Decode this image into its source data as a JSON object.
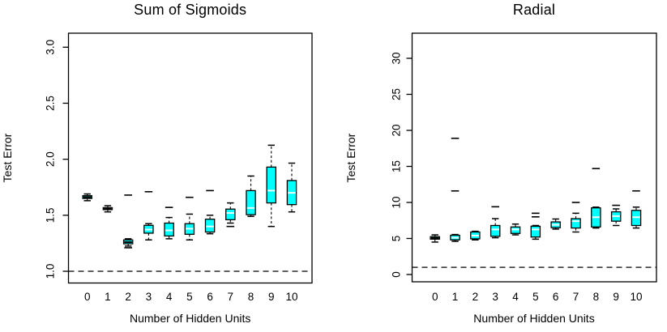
{
  "figure": {
    "background": "#ffffff",
    "line_color": "#000000",
    "accent_color": "#00ffff"
  },
  "chart_data": [
    {
      "type": "boxplot",
      "title": "Sum of Sigmoids",
      "xlabel": "Number of Hidden Units",
      "ylabel": "Test Error",
      "categories": [
        "0",
        "1",
        "2",
        "3",
        "4",
        "5",
        "6",
        "7",
        "8",
        "9",
        "10"
      ],
      "yticks": [
        1.0,
        1.5,
        2.0,
        2.5,
        3.0
      ],
      "ytick_labels": [
        "1.0",
        "1.5",
        "2.0",
        "2.5",
        "3.0"
      ],
      "ylim": [
        0.9,
        3.12
      ],
      "reference_line": 1.0,
      "grid": false,
      "legend": "none",
      "box_fill": "#00ffff",
      "median_color": "#eeffff",
      "boxes": [
        {
          "category": "0",
          "low": 1.63,
          "q1": 1.65,
          "median": 1.662,
          "q3": 1.675,
          "high": 1.69,
          "outliers": []
        },
        {
          "category": "1",
          "low": 1.53,
          "q1": 1.55,
          "median": 1.558,
          "q3": 1.568,
          "high": 1.585,
          "outliers": []
        },
        {
          "category": "2",
          "low": 1.225,
          "q1": 1.245,
          "median": 1.26,
          "q3": 1.28,
          "high": 1.29,
          "outliers": [
            1.68,
            1.21
          ]
        },
        {
          "category": "3",
          "low": 1.28,
          "q1": 1.34,
          "median": 1.372,
          "q3": 1.41,
          "high": 1.425,
          "outliers": [
            1.71
          ]
        },
        {
          "category": "4",
          "low": 1.29,
          "q1": 1.315,
          "median": 1.365,
          "q3": 1.43,
          "high": 1.48,
          "outliers": [
            1.57
          ]
        },
        {
          "category": "5",
          "low": 1.28,
          "q1": 1.33,
          "median": 1.38,
          "q3": 1.425,
          "high": 1.51,
          "outliers": [
            1.66
          ]
        },
        {
          "category": "6",
          "low": 1.335,
          "q1": 1.35,
          "median": 1.4,
          "q3": 1.465,
          "high": 1.5,
          "outliers": [
            1.72
          ]
        },
        {
          "category": "7",
          "low": 1.43,
          "q1": 1.46,
          "median": 1.52,
          "q3": 1.555,
          "high": 1.61,
          "outliers": [
            1.4
          ]
        },
        {
          "category": "8",
          "low": 1.49,
          "q1": 1.505,
          "median": 1.565,
          "q3": 1.72,
          "high": 1.85,
          "outliers": []
        },
        {
          "category": "9",
          "low": 1.4,
          "q1": 1.61,
          "median": 1.72,
          "q3": 1.93,
          "high": 2.125,
          "outliers": []
        },
        {
          "category": "10",
          "low": 1.53,
          "q1": 1.595,
          "median": 1.7,
          "q3": 1.81,
          "high": 1.965,
          "outliers": []
        }
      ]
    },
    {
      "type": "boxplot",
      "title": "Radial",
      "xlabel": "Number of Hidden Units",
      "ylabel": "Test Error",
      "categories": [
        "0",
        "1",
        "2",
        "3",
        "4",
        "5",
        "6",
        "7",
        "8",
        "9",
        "10"
      ],
      "yticks": [
        0,
        5,
        10,
        15,
        20,
        25,
        30
      ],
      "ytick_labels": [
        "0",
        "5",
        "10",
        "15",
        "20",
        "25",
        "30"
      ],
      "ylim": [
        -1.1,
        33.5
      ],
      "reference_line": 1.0,
      "grid": false,
      "legend": "none",
      "box_fill": "#00ffff",
      "median_color": "#eeffff",
      "boxes": [
        {
          "category": "0",
          "low": 4.5,
          "q1": 4.9,
          "median": 5.05,
          "q3": 5.25,
          "high": 5.5,
          "outliers": []
        },
        {
          "category": "1",
          "low": 4.6,
          "q1": 4.8,
          "median": 5.1,
          "q3": 5.45,
          "high": 5.55,
          "outliers": [
            18.9,
            11.6
          ]
        },
        {
          "category": "2",
          "low": 4.8,
          "q1": 4.95,
          "median": 5.4,
          "q3": 5.9,
          "high": 6.0,
          "outliers": []
        },
        {
          "category": "3",
          "low": 5.1,
          "q1": 5.3,
          "median": 6.25,
          "q3": 6.8,
          "high": 7.75,
          "outliers": [
            9.4
          ]
        },
        {
          "category": "4",
          "low": 5.5,
          "q1": 5.7,
          "median": 6.25,
          "q3": 6.6,
          "high": 7.0,
          "outliers": []
        },
        {
          "category": "5",
          "low": 4.9,
          "q1": 5.2,
          "median": 6.25,
          "q3": 6.7,
          "high": 6.8,
          "outliers": [
            8.5,
            8.0
          ]
        },
        {
          "category": "6",
          "low": 6.3,
          "q1": 6.5,
          "median": 6.9,
          "q3": 7.3,
          "high": 7.7,
          "outliers": []
        },
        {
          "category": "7",
          "low": 5.9,
          "q1": 6.45,
          "median": 7.4,
          "q3": 7.75,
          "high": 8.5,
          "outliers": [
            10.0
          ]
        },
        {
          "category": "8",
          "low": 6.45,
          "q1": 6.6,
          "median": 7.95,
          "q3": 9.25,
          "high": 9.35,
          "outliers": [
            14.7
          ]
        },
        {
          "category": "9",
          "low": 6.8,
          "q1": 7.4,
          "median": 8.1,
          "q3": 8.7,
          "high": 9.1,
          "outliers": [
            9.6
          ]
        },
        {
          "category": "10",
          "low": 6.45,
          "q1": 6.8,
          "median": 7.95,
          "q3": 8.9,
          "high": 9.35,
          "outliers": [
            11.6
          ]
        }
      ]
    }
  ]
}
